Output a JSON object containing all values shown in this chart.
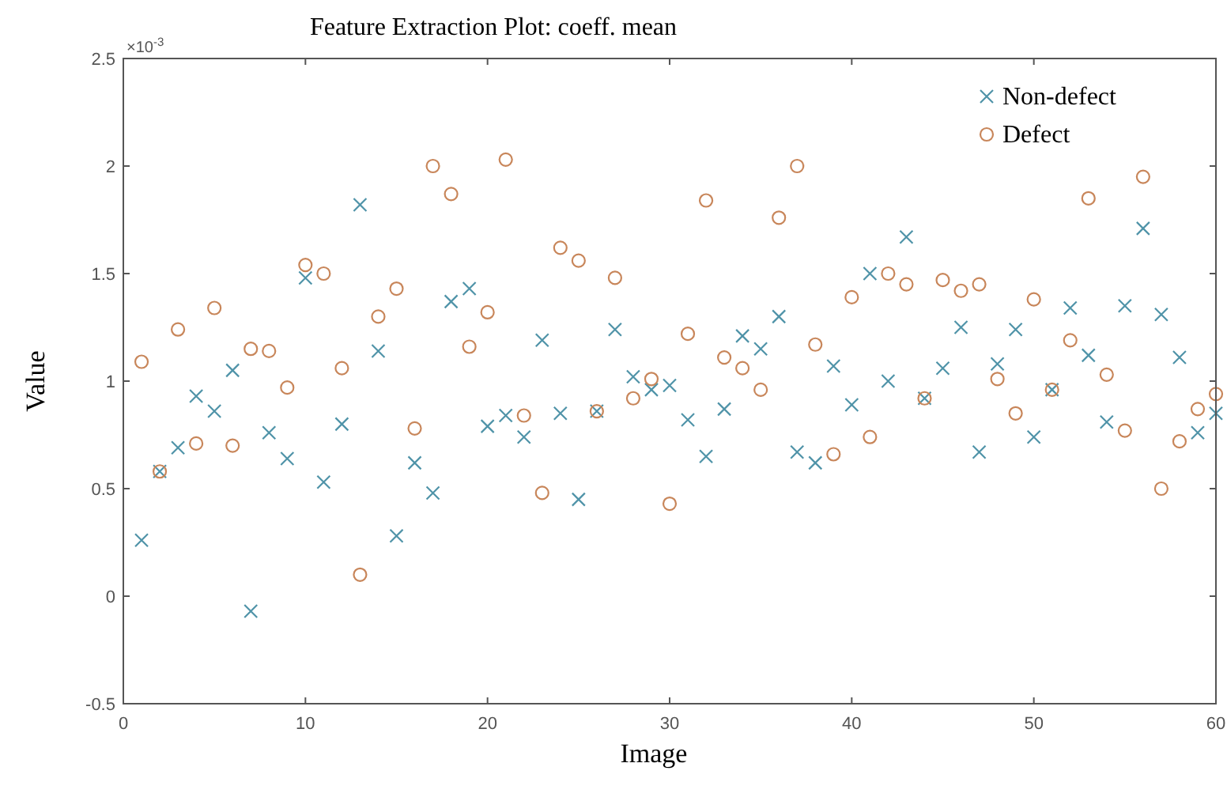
{
  "chart_data": {
    "type": "scatter",
    "title": "Feature Extraction Plot: coeff. mean",
    "xlabel": "Image",
    "ylabel": "Value",
    "annotations": [
      "×10$^{-3}$"
    ],
    "xlim": [
      0,
      60
    ],
    "xticks": [
      0,
      10,
      20,
      30,
      40,
      50,
      60
    ],
    "ylim": [
      -0.5,
      2.5
    ],
    "yticks": [
      -0.5,
      0,
      0.5,
      1,
      1.5,
      2,
      2.5
    ],
    "grid": false,
    "legend": "top right",
    "x": [
      1,
      2,
      3,
      4,
      5,
      6,
      7,
      8,
      9,
      10,
      11,
      12,
      13,
      14,
      15,
      16,
      17,
      18,
      19,
      20,
      21,
      22,
      23,
      24,
      25,
      26,
      27,
      28,
      29,
      30,
      31,
      32,
      33,
      34,
      35,
      36,
      37,
      38,
      39,
      40,
      41,
      42,
      43,
      44,
      45,
      46,
      47,
      48,
      49,
      50,
      51,
      52,
      53,
      54,
      55,
      56,
      57,
      58,
      59,
      60
    ],
    "series": [
      {
        "name": "Non-defect",
        "color": "#4f93a8",
        "marker": "cross",
        "values": [
          0.26,
          0.58,
          0.69,
          0.93,
          0.86,
          1.05,
          -0.07,
          0.76,
          0.64,
          1.48,
          0.53,
          0.8,
          1.82,
          1.14,
          0.28,
          0.62,
          0.48,
          1.37,
          1.43,
          0.79,
          0.84,
          0.74,
          1.19,
          0.85,
          0.45,
          0.86,
          1.24,
          1.02,
          0.96,
          0.98,
          0.82,
          0.65,
          0.87,
          1.21,
          1.15,
          1.3,
          0.67,
          0.62,
          1.07,
          0.89,
          1.5,
          1.0,
          1.67,
          0.92,
          1.06,
          1.25,
          0.67,
          1.08,
          1.24,
          0.74,
          0.96,
          1.34,
          1.12,
          0.81,
          1.35,
          1.71,
          1.31,
          1.11,
          0.76,
          0.85
        ]
      },
      {
        "name": "Defect",
        "color": "#c8865a",
        "marker": "circle",
        "values": [
          1.09,
          0.58,
          1.24,
          0.71,
          1.34,
          0.7,
          1.15,
          1.14,
          0.97,
          1.54,
          1.5,
          1.06,
          0.1,
          1.3,
          1.43,
          0.78,
          2.0,
          1.87,
          1.16,
          1.32,
          2.03,
          0.84,
          0.48,
          1.62,
          1.56,
          0.86,
          1.48,
          0.92,
          1.01,
          0.43,
          1.22,
          1.84,
          1.11,
          1.06,
          0.96,
          1.76,
          2.0,
          1.17,
          0.66,
          1.39,
          0.74,
          1.5,
          1.45,
          0.92,
          1.47,
          1.42,
          1.45,
          1.01,
          0.85,
          1.38,
          0.96,
          1.19,
          1.85,
          1.03,
          0.77,
          1.95,
          0.5,
          0.72,
          0.87,
          0.94
        ]
      }
    ]
  }
}
